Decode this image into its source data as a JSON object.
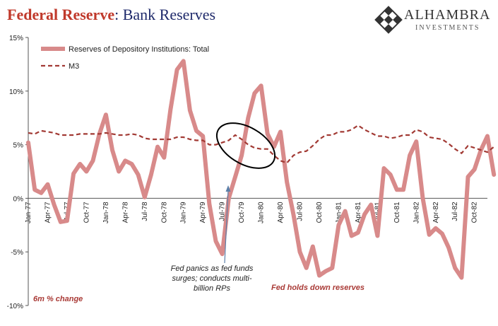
{
  "header": {
    "title_part1": "Federal Reserve",
    "title_part2": ": Bank Reserves"
  },
  "logo": {
    "brand": "ALHAMBRA",
    "sub": "INVESTMENTS",
    "icon": "diamond-lattice-icon"
  },
  "chart_data": {
    "type": "line",
    "ylim": [
      -10,
      15
    ],
    "yticks": [
      -10,
      -5,
      0,
      5,
      10,
      15
    ],
    "ytick_labels": [
      "-10%",
      "-5%",
      "0%",
      "5%",
      "10%",
      "15%"
    ],
    "xtick_labels": [
      "Jan-77",
      "Apr-77",
      "Jul-77",
      "Oct-77",
      "Jan-78",
      "Apr-78",
      "Jul-78",
      "Oct-78",
      "Jan-79",
      "Apr-79",
      "Jul-79",
      "Oct-79",
      "Jan-80",
      "Apr-80",
      "Jul-80",
      "Oct-80",
      "Jan-81",
      "Apr-81",
      "Jul-81",
      "Oct-81",
      "Jan-82",
      "Apr-82",
      "Jul-82",
      "Oct-82"
    ],
    "xtick_months": [
      0,
      3,
      6,
      9,
      12,
      15,
      18,
      21,
      24,
      27,
      30,
      33,
      36,
      39,
      42,
      45,
      48,
      51,
      54,
      57,
      60,
      63,
      66,
      69
    ],
    "x_months_span": 71,
    "colors": {
      "reserves": "#d88a8a",
      "m3": "#a23a34",
      "axis": "#555555",
      "ellipse": "#000000",
      "arrow": "#5b7fa8",
      "fed_holds": "#a93a36"
    },
    "series": [
      {
        "name": "Reserves of Depository Institutions: Total",
        "style": "solid",
        "values": [
          5.2,
          0.8,
          0.5,
          1.3,
          -0.6,
          -2.2,
          -2.1,
          2.3,
          3.2,
          2.5,
          3.5,
          6.0,
          7.8,
          4.5,
          2.5,
          3.5,
          3.2,
          2.2,
          0.1,
          2.2,
          4.8,
          3.8,
          8.3,
          12.0,
          12.8,
          8.2,
          6.3,
          5.8,
          -0.5,
          -4.0,
          -5.2,
          0.0,
          2.0,
          4.0,
          7.5,
          9.8,
          10.5,
          6.0,
          4.8,
          6.2,
          1.5,
          -1.5,
          -5.0,
          -6.5,
          -4.5,
          -7.2,
          -6.8,
          -6.5,
          -2.5,
          -1.2,
          -3.5,
          -3.2,
          -1.5,
          -0.6,
          -3.5,
          2.8,
          2.2,
          0.8,
          0.8,
          4.0,
          5.3,
          0.0,
          -3.4,
          -2.8,
          -3.3,
          -4.6,
          -6.5,
          -7.4,
          2.0,
          2.7,
          4.5,
          5.8,
          2.2
        ]
      },
      {
        "name": "M3",
        "style": "dashed",
        "values": [
          6.1,
          6.0,
          6.3,
          6.2,
          6.1,
          5.9,
          5.9,
          5.9,
          6.0,
          6.0,
          6.0,
          6.0,
          6.1,
          6.0,
          5.9,
          5.9,
          6.0,
          5.9,
          5.6,
          5.5,
          5.5,
          5.5,
          5.5,
          5.7,
          5.7,
          5.5,
          5.4,
          5.4,
          5.0,
          5.0,
          5.2,
          5.4,
          5.9,
          5.5,
          5.0,
          4.7,
          4.6,
          4.6,
          4.0,
          3.5,
          3.3,
          4.0,
          4.3,
          4.4,
          4.9,
          5.5,
          5.9,
          5.9,
          6.2,
          6.2,
          6.4,
          6.8,
          6.4,
          6.1,
          5.8,
          5.8,
          5.6,
          5.7,
          5.9,
          5.9,
          6.4,
          6.2,
          5.7,
          5.6,
          5.5,
          5.1,
          4.6,
          4.2,
          4.9,
          4.7,
          4.5,
          4.3,
          4.8
        ]
      }
    ],
    "annotations": {
      "fed_panics_lines": [
        "Fed panics as fed funds",
        "surges; conducts multi-",
        "billion RPs"
      ],
      "fed_holds": "Fed holds  down reserves",
      "footnote": "6m % change"
    }
  }
}
